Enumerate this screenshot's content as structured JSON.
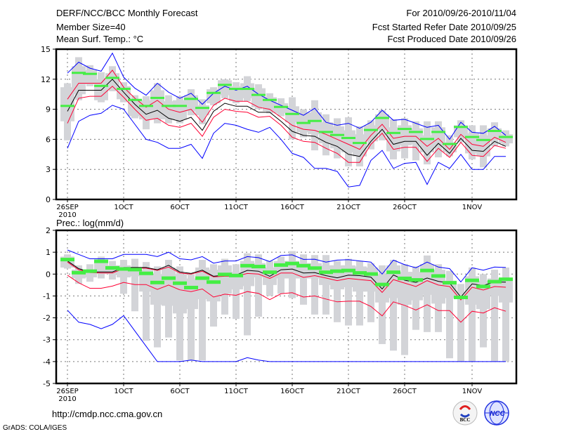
{
  "header": {
    "title": "DERF/NCC/BCC Monthly Forecast",
    "member_size": "Member Size=40",
    "variable_top": "Mean Surf. Temp.: °C",
    "period": "For 2010/09/26-2010/11/04",
    "started": "Fcst Started Refer Date 2010/09/25",
    "produced": "Fcst Produced Date 2010/09/26"
  },
  "footer": {
    "url": "http://cmdp.ncc.cma.gov.cn",
    "grads": "GrADS: COLA/IGES",
    "logo_left": "BCC",
    "logo_right": "NCC"
  },
  "colors": {
    "max_min": "#0000ff",
    "spread": "#ff0033",
    "mean": "#000000",
    "median": "#44ee44",
    "box": "#d3d4d8"
  },
  "chart_data": [
    {
      "type": "line",
      "title": "Mean Surf. Temp.: °C",
      "x_start_day": "2010-09-26",
      "n_days": 40,
      "xticks": [
        {
          "day": 0,
          "label": "26SEP",
          "sub": "2010"
        },
        {
          "day": 5,
          "label": "1OCT"
        },
        {
          "day": 10,
          "label": "6OCT"
        },
        {
          "day": 15,
          "label": "11OCT"
        },
        {
          "day": 20,
          "label": "16OCT"
        },
        {
          "day": 25,
          "label": "21OCT"
        },
        {
          "day": 30,
          "label": "26OCT"
        },
        {
          "day": 36,
          "label": "1NOV"
        }
      ],
      "ylim": [
        0,
        15
      ],
      "yticks": [
        0,
        3,
        6,
        9,
        12,
        15
      ],
      "grid": true,
      "series": [
        {
          "name": "max",
          "color": "#0000ff",
          "values": [
            12.6,
            13.7,
            13.1,
            12.8,
            14.6,
            12.2,
            11.1,
            10.4,
            11.6,
            10.7,
            10.1,
            10.6,
            9.5,
            10.6,
            11.3,
            10.9,
            11.3,
            10.5,
            9.9,
            9.4,
            8.9,
            8.4,
            9.1,
            7.7,
            7.4,
            7.6,
            7.1,
            7.7,
            8.9,
            7.9,
            8.0,
            7.6,
            7.2,
            7.4,
            6.0,
            7.7,
            6.7,
            6.6,
            7.3,
            6.4
          ]
        },
        {
          "name": "upper",
          "color": "#ff0033",
          "values": [
            10.0,
            11.6,
            11.6,
            11.6,
            12.9,
            11.2,
            10.1,
            9.2,
            9.9,
            9.0,
            8.7,
            9.0,
            7.7,
            9.4,
            10.1,
            9.8,
            9.8,
            9.2,
            9.0,
            8.2,
            7.4,
            7.0,
            6.9,
            6.5,
            6.0,
            5.5,
            5.0,
            6.4,
            7.5,
            6.1,
            6.3,
            6.3,
            5.3,
            6.1,
            5.0,
            6.5,
            5.5,
            5.3,
            6.2,
            5.7
          ]
        },
        {
          "name": "mean",
          "color": "#000000",
          "values": [
            8.8,
            10.9,
            10.9,
            10.9,
            12.0,
            10.7,
            9.5,
            8.5,
            8.9,
            8.1,
            7.8,
            8.2,
            6.9,
            8.8,
            9.6,
            9.3,
            9.3,
            8.7,
            8.7,
            7.8,
            6.8,
            6.4,
            6.3,
            5.7,
            5.3,
            4.5,
            4.3,
            5.8,
            7.0,
            5.5,
            5.8,
            5.8,
            4.4,
            5.6,
            4.6,
            6.1,
            4.9,
            4.8,
            5.8,
            5.3
          ]
        },
        {
          "name": "lower",
          "color": "#ff0033",
          "values": [
            7.6,
            10.1,
            10.3,
            10.3,
            11.3,
            10.2,
            9.0,
            7.9,
            8.1,
            7.4,
            7.2,
            7.6,
            6.3,
            8.2,
            9.0,
            8.8,
            8.7,
            8.2,
            8.3,
            7.4,
            6.2,
            5.8,
            5.7,
            5.1,
            4.6,
            3.7,
            3.7,
            5.5,
            6.6,
            5.0,
            5.2,
            5.2,
            3.8,
            5.1,
            4.2,
            5.7,
            4.4,
            4.3,
            5.4,
            5.1
          ]
        },
        {
          "name": "min",
          "color": "#0000ff",
          "values": [
            5.1,
            7.8,
            8.4,
            8.6,
            9.4,
            9.0,
            7.5,
            6.0,
            5.7,
            5.1,
            5.1,
            5.5,
            4.1,
            6.6,
            7.6,
            7.4,
            7.0,
            6.7,
            7.2,
            6.0,
            4.6,
            4.2,
            3.1,
            3.1,
            2.8,
            1.25,
            1.4,
            3.9,
            4.9,
            3.1,
            3.6,
            3.7,
            1.5,
            3.7,
            3.1,
            4.5,
            3.0,
            3.0,
            4.3,
            4.3
          ]
        }
      ],
      "median": [
        9.3,
        12.6,
        12.5,
        11.3,
        12.1,
        11.0,
        9.9,
        9.3,
        10.1,
        9.3,
        9.3,
        10.0,
        9.1,
        10.6,
        11.4,
        11.0,
        11.0,
        10.4,
        9.9,
        9.2,
        8.5,
        7.6,
        7.8,
        6.7,
        6.4,
        6.1,
        5.6,
        6.9,
        8.1,
        6.6,
        7.0,
        6.7,
        6.0,
        6.7,
        5.5,
        7.2,
        6.2,
        5.9,
        6.8,
        6.2
      ],
      "box": {
        "whisker_high": [
          11.6,
          14.2,
          13.4,
          12.7,
          13.3,
          11.7,
          10.4,
          10.3,
          11.6,
          10.4,
          10.3,
          11.0,
          10.0,
          11.2,
          12.0,
          11.7,
          12.3,
          11.5,
          10.6,
          10.1,
          10.2,
          9.0,
          9.9,
          8.5,
          8.1,
          8.2,
          7.3,
          7.9,
          8.9,
          8.0,
          8.1,
          7.8,
          7.8,
          7.8,
          6.4,
          7.9,
          7.4,
          7.4,
          7.7,
          6.9
        ],
        "box_high": [
          11.2,
          13.3,
          12.9,
          12.0,
          12.6,
          11.3,
          10.0,
          9.9,
          10.9,
          9.8,
          9.9,
          10.4,
          9.4,
          11.0,
          11.9,
          11.3,
          11.6,
          11.1,
          10.2,
          9.6,
          9.3,
          8.7,
          8.7,
          7.7,
          7.3,
          6.9,
          6.5,
          7.4,
          8.5,
          7.2,
          7.4,
          7.1,
          6.4,
          7.2,
          5.7,
          7.4,
          6.6,
          6.4,
          7.1,
          6.5
        ],
        "box_low": [
          7.8,
          10.5,
          11.5,
          9.9,
          11.0,
          10.0,
          8.3,
          8.0,
          8.0,
          8.0,
          8.0,
          8.8,
          8.4,
          9.6,
          10.4,
          9.8,
          10.1,
          9.2,
          8.8,
          8.6,
          7.7,
          6.7,
          6.5,
          5.6,
          5.1,
          4.7,
          4.3,
          5.8,
          6.9,
          4.8,
          5.4,
          5.5,
          4.7,
          5.3,
          4.7,
          6.2,
          4.6,
          4.3,
          6.0,
          5.6
        ],
        "whisker_low": [
          5.9,
          9.9,
          11.3,
          9.7,
          10.8,
          9.7,
          8.1,
          7.0,
          7.6,
          7.6,
          7.6,
          8.4,
          7.5,
          9.4,
          10.1,
          9.6,
          9.8,
          9.0,
          8.6,
          8.3,
          6.0,
          6.2,
          4.9,
          4.4,
          4.1,
          3.3,
          3.3,
          5.0,
          5.9,
          4.0,
          4.1,
          3.9,
          3.5,
          4.2,
          4.3,
          5.7,
          4.0,
          3.2,
          5.3,
          5.3
        ]
      }
    },
    {
      "type": "line",
      "title": "Prec.: log(mm/d)",
      "x_start_day": "2010-09-26",
      "n_days": 40,
      "xticks": [
        {
          "day": 0,
          "label": "26SEP",
          "sub": "2010"
        },
        {
          "day": 5,
          "label": "1OCT"
        },
        {
          "day": 10,
          "label": "6OCT"
        },
        {
          "day": 15,
          "label": "11OCT"
        },
        {
          "day": 20,
          "label": "16OCT"
        },
        {
          "day": 25,
          "label": "21OCT"
        },
        {
          "day": 30,
          "label": "26OCT"
        },
        {
          "day": 36,
          "label": "1NOV"
        }
      ],
      "ylim": [
        -5,
        2
      ],
      "yticks": [
        -5,
        -4,
        -3,
        -2,
        -1,
        0,
        1,
        2
      ],
      "grid": true,
      "series": [
        {
          "name": "max",
          "color": "#0000ff",
          "values": [
            1.1,
            0.9,
            0.7,
            0.7,
            0.7,
            0.9,
            0.9,
            0.9,
            0.8,
            1.0,
            0.7,
            0.65,
            0.8,
            0.5,
            0.6,
            0.6,
            0.8,
            0.75,
            0.57,
            0.85,
            0.88,
            0.67,
            0.68,
            0.55,
            0.64,
            0.66,
            0.6,
            0.55,
            0.0,
            0.64,
            0.43,
            0.29,
            0.55,
            0.32,
            0.25,
            -0.36,
            0.29,
            0.18,
            0.32,
            0.3
          ]
        },
        {
          "name": "upper",
          "color": "#ff0033",
          "values": [
            0.55,
            0.2,
            0.07,
            0.05,
            0.05,
            0.25,
            0.27,
            0.27,
            0.17,
            0.32,
            0.05,
            0.0,
            0.13,
            -0.13,
            -0.1,
            -0.1,
            0.03,
            0.0,
            -0.2,
            0.05,
            0.05,
            -0.15,
            -0.07,
            -0.18,
            -0.3,
            -0.2,
            -0.25,
            -0.3,
            -0.84,
            -0.25,
            -0.41,
            -0.57,
            -0.3,
            -0.5,
            -0.57,
            -1.18,
            -0.6,
            -0.73,
            -0.57,
            -0.6
          ]
        },
        {
          "name": "mean",
          "color": "#000000",
          "values": [
            0.6,
            0.25,
            0.1,
            0.1,
            0.1,
            0.3,
            0.3,
            0.3,
            0.2,
            0.4,
            0.1,
            0.03,
            0.18,
            -0.1,
            -0.05,
            -0.05,
            0.17,
            0.13,
            -0.1,
            0.2,
            0.23,
            0.05,
            0.07,
            -0.07,
            -0.17,
            -0.05,
            -0.07,
            -0.14,
            -0.68,
            -0.04,
            -0.28,
            -0.38,
            -0.18,
            -0.33,
            -0.41,
            -1.05,
            -0.45,
            -0.52,
            -0.36,
            -0.37
          ]
        },
        {
          "name": "lower",
          "color": "#ff0033",
          "values": [
            -0.05,
            -0.4,
            -0.65,
            -0.65,
            -0.55,
            -0.38,
            -0.48,
            -0.48,
            -0.7,
            -0.5,
            -0.72,
            -0.8,
            -0.68,
            -1.05,
            -0.92,
            -0.97,
            -0.8,
            -0.88,
            -1.17,
            -0.9,
            -0.85,
            -1.05,
            -1.0,
            -1.14,
            -1.27,
            -1.24,
            -1.24,
            -1.48,
            -1.91,
            -1.27,
            -1.43,
            -1.64,
            -1.4,
            -1.67,
            -1.67,
            -2.2,
            -1.7,
            -1.78,
            -1.54,
            -1.7
          ]
        },
        {
          "name": "min",
          "color": "#0000ff",
          "values": [
            -1.65,
            -2.2,
            -2.3,
            -2.5,
            -2.3,
            -1.9,
            -2.6,
            -3.3,
            -4.0,
            -4.0,
            -4.0,
            -3.93,
            -4.0,
            -4.0,
            -4.0,
            -4.0,
            -3.82,
            -3.93,
            -4.0,
            -4.0,
            -4.0,
            -4.0,
            -4.0,
            -4.0,
            -4.0,
            -4.0,
            -4.0,
            -4.0,
            -4.0,
            -4.0,
            -4.0,
            -4.0,
            -4.0,
            -4.0,
            -4.0,
            -4.0,
            -4.0,
            -4.0,
            -4.0,
            -4.0
          ]
        }
      ],
      "median": [
        0.68,
        0.08,
        0.15,
        0.6,
        0.3,
        0.25,
        0.22,
        0.05,
        -0.37,
        -0.17,
        -0.4,
        -0.6,
        -0.17,
        -0.35,
        0.0,
        -0.05,
        0.4,
        0.36,
        0.1,
        0.43,
        0.5,
        0.4,
        0.29,
        0.1,
        0.15,
        0.18,
        0.07,
        0.02,
        -0.46,
        0.1,
        -0.18,
        -0.25,
        0.18,
        -0.07,
        -0.38,
        -1.05,
        -0.27,
        -0.55,
        -0.33,
        -0.22
      ],
      "box": {
        "whisker_high": [
          0.9,
          0.4,
          0.45,
          0.8,
          0.6,
          0.65,
          0.7,
          0.55,
          0.35,
          0.65,
          0.35,
          0.0,
          0.65,
          0.45,
          0.7,
          0.45,
          0.95,
          0.9,
          0.6,
          0.8,
          1.05,
          0.9,
          0.87,
          0.87,
          0.6,
          0.7,
          0.6,
          0.5,
          0.4,
          0.65,
          0.45,
          0.35,
          0.85,
          0.45,
          0.15,
          -0.45,
          0.3,
          0.0,
          0.2,
          0.3
        ],
        "box_high": [
          0.8,
          0.2,
          0.2,
          0.6,
          0.4,
          0.4,
          0.3,
          0.2,
          0.0,
          0.3,
          0.0,
          -0.2,
          0.3,
          0.2,
          0.4,
          0.1,
          0.6,
          0.5,
          0.3,
          0.6,
          0.6,
          0.5,
          0.5,
          0.4,
          0.4,
          0.4,
          0.35,
          0.3,
          0.0,
          0.4,
          0.1,
          0.1,
          0.45,
          0.2,
          -0.3,
          -0.8,
          -0.1,
          -0.3,
          -0.2,
          -0.2
        ],
        "box_low": [
          0.3,
          -0.2,
          -0.15,
          0.0,
          0.0,
          -0.15,
          -0.1,
          -0.8,
          -1.4,
          -1.45,
          -1.8,
          -1.6,
          -1.15,
          -1.25,
          -0.9,
          -0.7,
          -0.55,
          -0.15,
          -0.5,
          -0.2,
          -0.2,
          -0.2,
          -0.2,
          -0.5,
          -0.7,
          -0.6,
          -0.8,
          -0.8,
          -1.3,
          -1.1,
          -1.4,
          -1.2,
          -0.95,
          -1.35,
          -1.1,
          -1.05,
          -1.4,
          -1.6,
          -1.0,
          -1.3
        ],
        "whisker_low": [
          0.25,
          -0.45,
          -0.35,
          -0.2,
          -0.25,
          -0.9,
          -1.7,
          -3.05,
          -3.35,
          -2.9,
          -3.95,
          -3.95,
          -3.95,
          -2.4,
          -1.85,
          -2.05,
          -2.8,
          -1.95,
          -1.0,
          -0.9,
          -1.1,
          -1.4,
          -1.85,
          -1.85,
          -2.2,
          -2.35,
          -2.35,
          -2.2,
          -3.2,
          -3.5,
          -3.7,
          -2.55,
          -2.65,
          -2.65,
          -3.85,
          -4.0,
          -4.0,
          -3.35,
          -4.0,
          -4.0
        ]
      }
    }
  ]
}
